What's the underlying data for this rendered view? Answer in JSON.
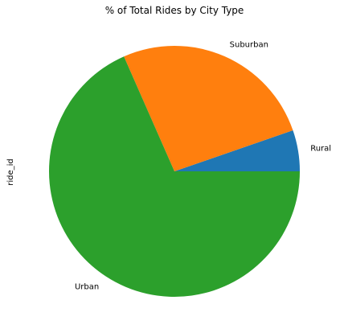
{
  "chart_data": {
    "type": "pie",
    "title": "% of Total Rides by City Type",
    "ylabel": "ride_id",
    "categories": [
      "Rural",
      "Suburban",
      "Urban"
    ],
    "values": [
      5.3,
      26.3,
      68.4
    ],
    "colors": [
      "#1f77b4",
      "#ff7f0e",
      "#2ca02c"
    ],
    "start_angle_deg": 0,
    "direction": "counterclockwise"
  }
}
